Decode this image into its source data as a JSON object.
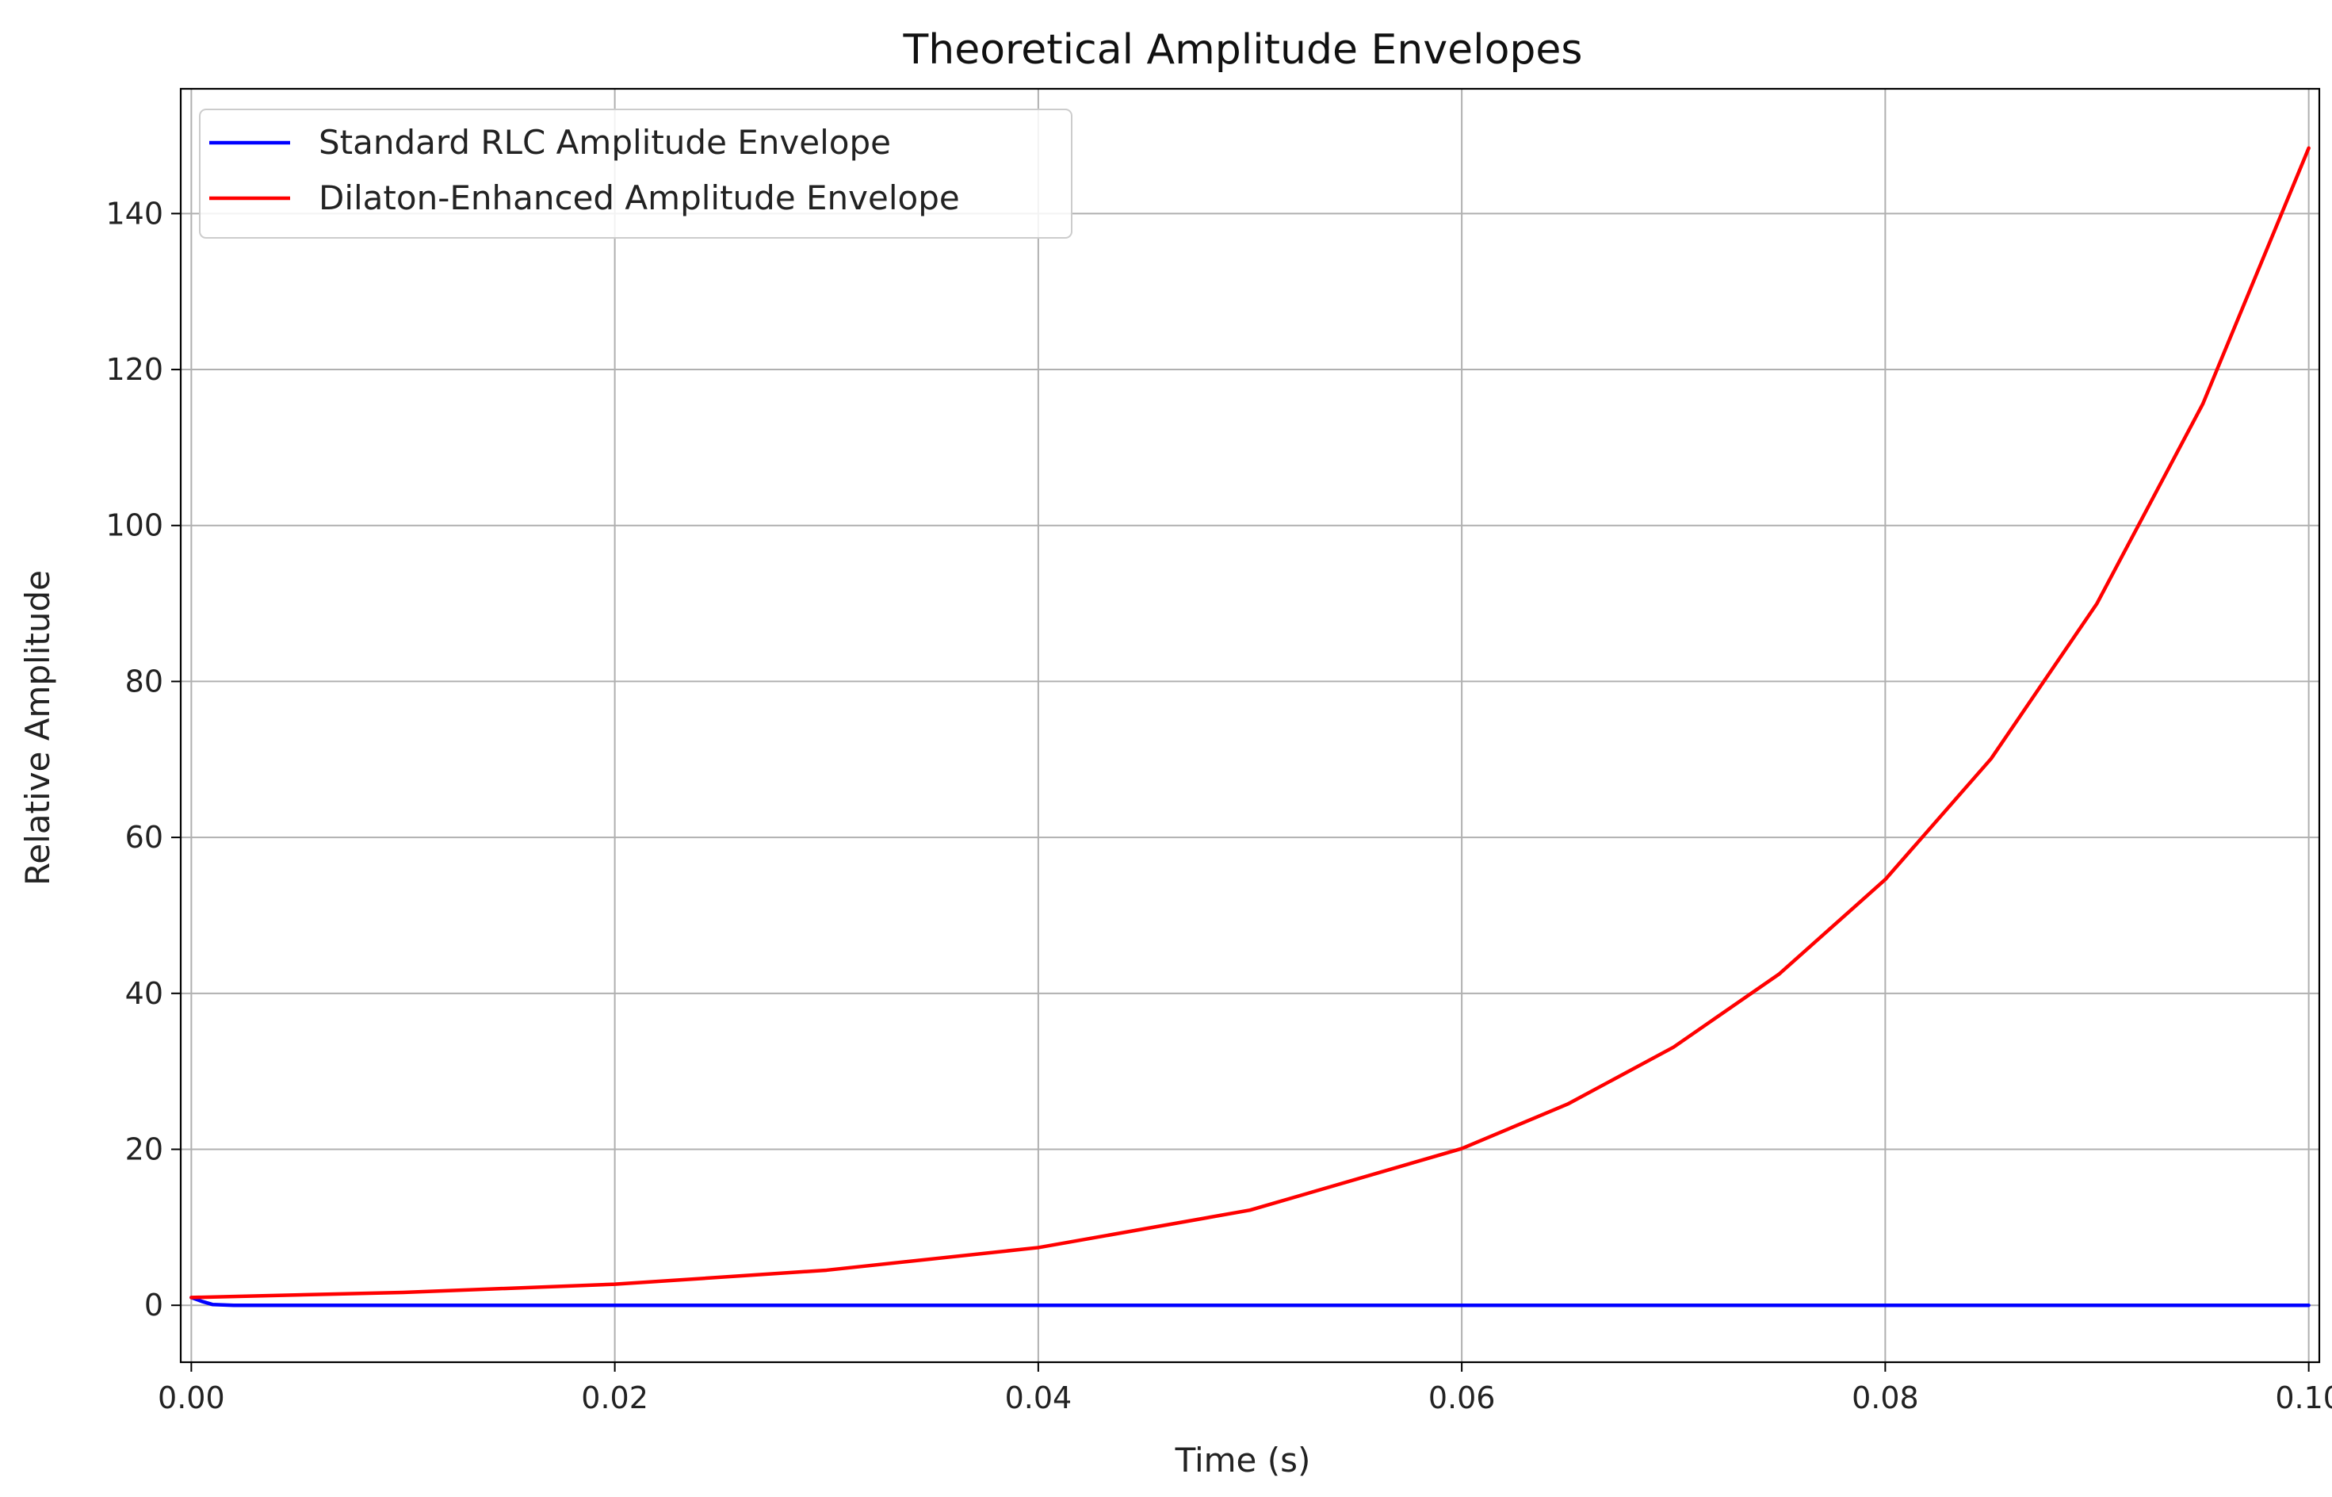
{
  "chart_data": {
    "type": "line",
    "title": "Theoretical Amplitude Envelopes",
    "xlabel": "Time (s)",
    "ylabel": "Relative Amplitude",
    "xlim": [
      -0.0005,
      0.1005
    ],
    "ylim": [
      -7.3,
      156.0
    ],
    "x_ticks": [
      0.0,
      0.02,
      0.04,
      0.06,
      0.08,
      0.1
    ],
    "x_tick_labels": [
      "0.00",
      "0.02",
      "0.04",
      "0.06",
      "0.08",
      "0.10"
    ],
    "y_ticks": [
      0,
      20,
      40,
      60,
      80,
      100,
      120,
      140
    ],
    "y_tick_labels": [
      "0",
      "20",
      "40",
      "60",
      "80",
      "100",
      "120",
      "140"
    ],
    "grid": true,
    "legend_position": "top-left",
    "series": [
      {
        "name": "Standard RLC Amplitude Envelope",
        "color": "#0000ff",
        "x": [
          0.0,
          0.0005,
          0.001,
          0.002,
          0.005,
          0.01,
          0.02,
          0.04,
          0.06,
          0.08,
          0.1
        ],
        "y": [
          1.0,
          0.5,
          0.1,
          0.0,
          0.0,
          0.0,
          0.0,
          0.0,
          0.0,
          0.0,
          0.0
        ]
      },
      {
        "name": "Dilaton-Enhanced Amplitude Envelope",
        "color": "#ff0000",
        "x": [
          0.0,
          0.01,
          0.02,
          0.03,
          0.04,
          0.05,
          0.06,
          0.065,
          0.07,
          0.075,
          0.08,
          0.085,
          0.09,
          0.095,
          0.1
        ],
        "y": [
          1.0,
          1.65,
          2.7,
          4.5,
          7.4,
          12.2,
          20.1,
          25.8,
          33.1,
          42.5,
          54.6,
          70.1,
          90.0,
          115.6,
          148.4
        ]
      }
    ]
  }
}
